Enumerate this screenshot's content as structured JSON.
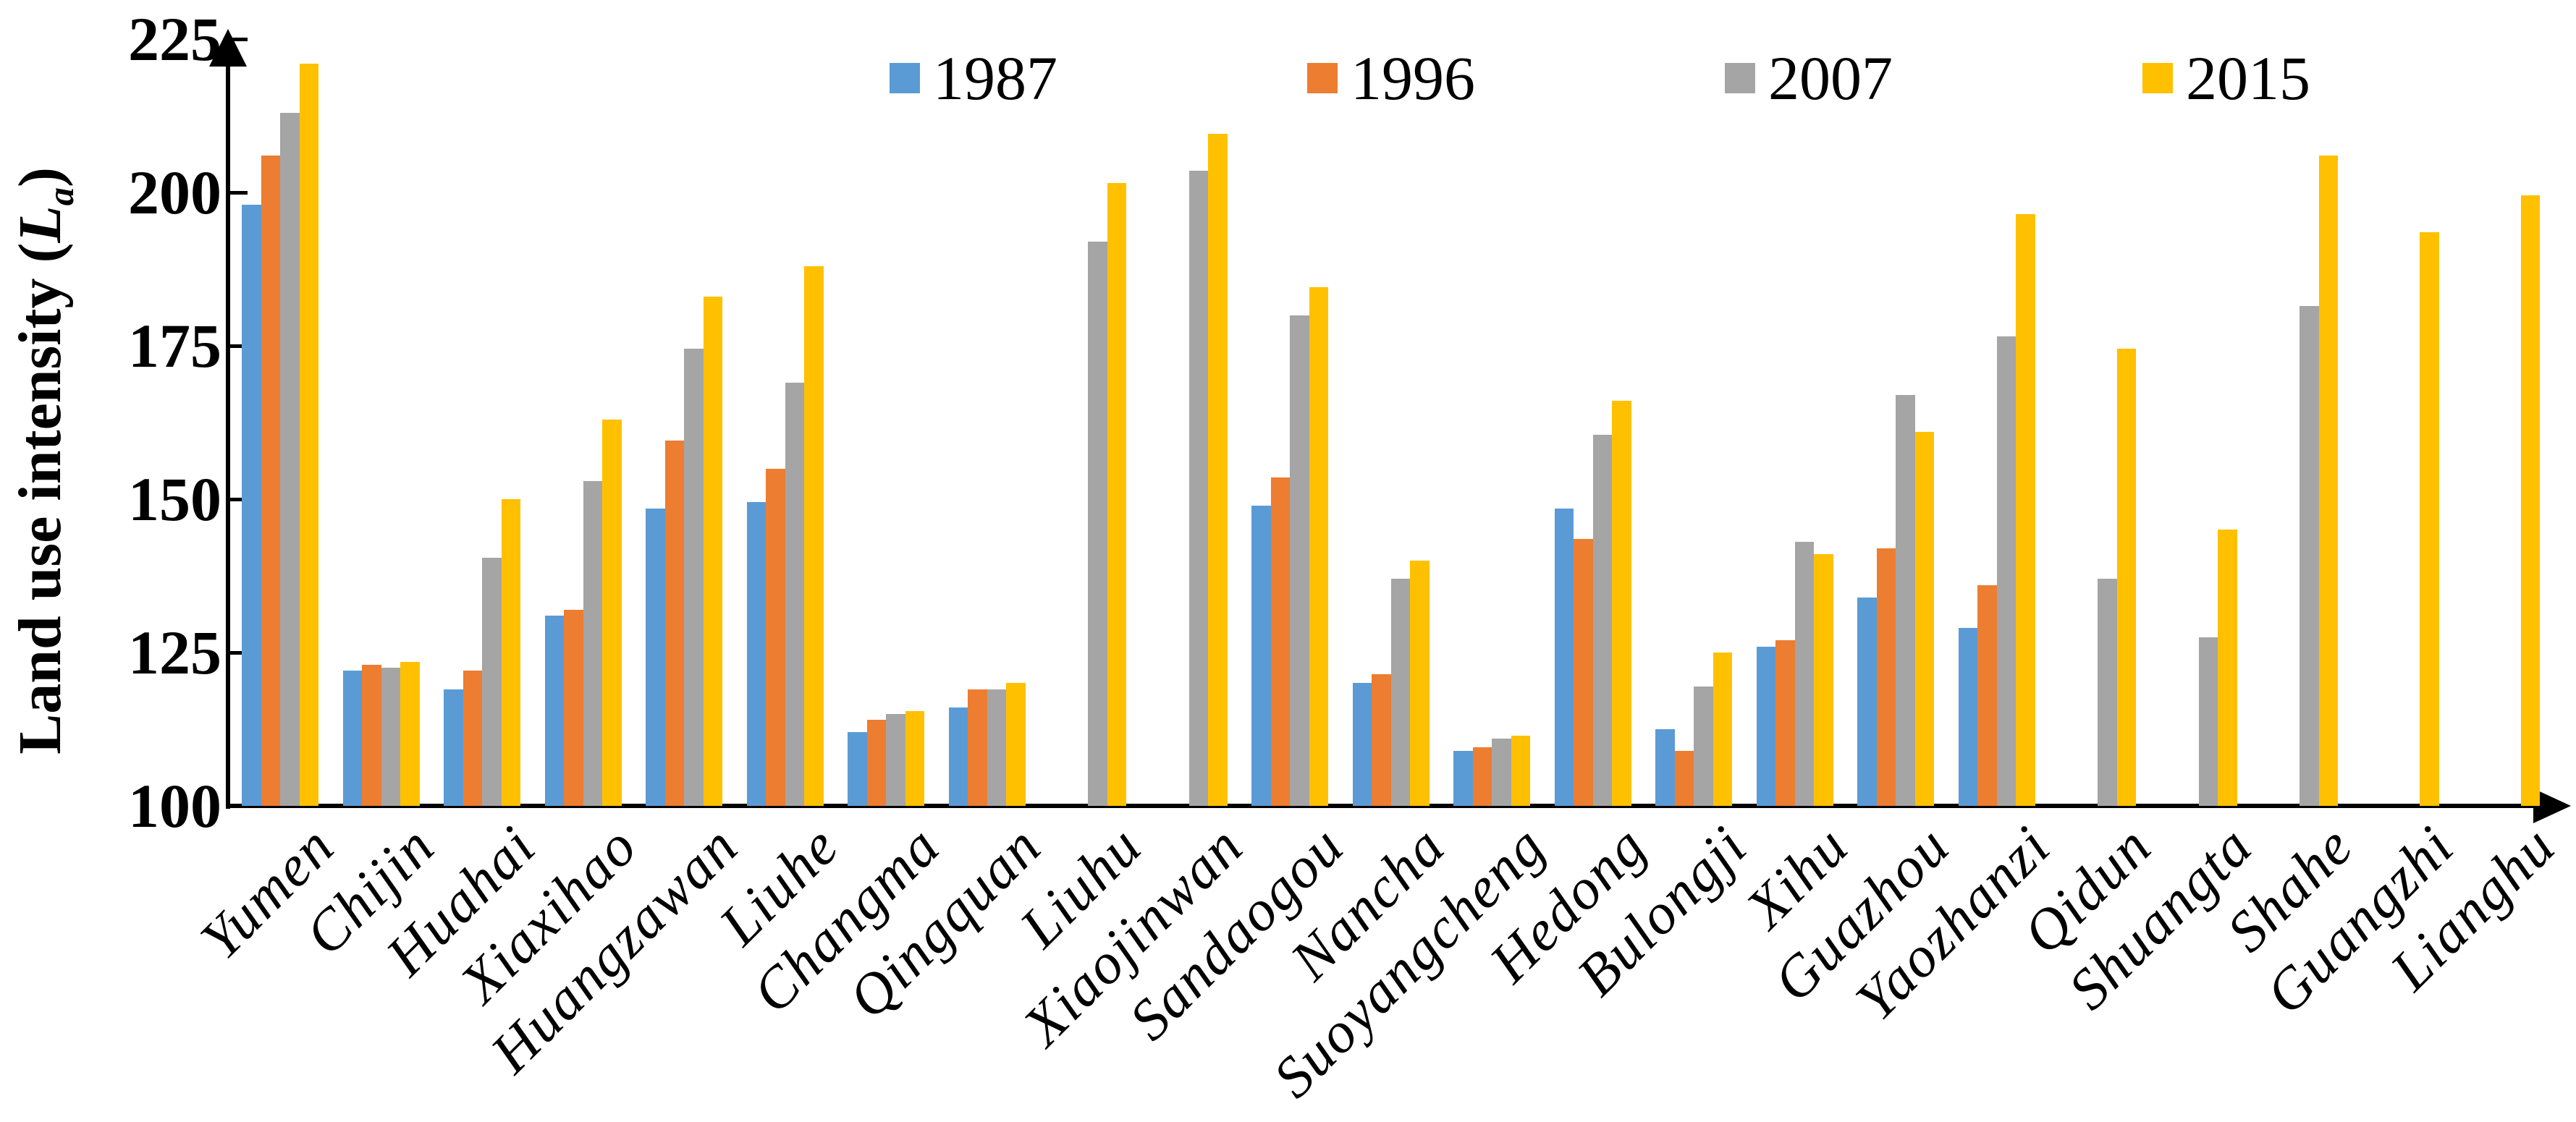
{
  "chart_data": {
    "type": "bar",
    "title": "",
    "ylabel_prefix": "Land use intensity (",
    "ylabel_symbol": "L",
    "ylabel_symbol_sub": "a",
    "ylabel_suffix": ")",
    "xlabel": "",
    "ylim": [
      100,
      225
    ],
    "yticks": [
      100,
      125,
      150,
      175,
      200,
      225
    ],
    "grid": false,
    "legend_position": "top",
    "categories": [
      "Yumen",
      "Chijin",
      "Huahai",
      "Xiaxihao",
      "Huangzawan",
      "Liuhe",
      "Changma",
      "Qingquan",
      "Liuhu",
      "Xiaojinwan",
      "Sandaogou",
      "Nancha",
      "Suoyangcheng",
      "Hedong",
      "Bulongji",
      "Xihu",
      "Guazhou",
      "Yaozhanzi",
      "Qidun",
      "Shuangta",
      "Shahe",
      "Guangzhi",
      "Lianghu"
    ],
    "series": [
      {
        "name": "1987",
        "color": "#5B9BD5",
        "values": [
          198,
          122,
          119,
          131,
          148.5,
          149.5,
          112,
          116,
          null,
          null,
          149,
          120,
          109,
          148.5,
          112.5,
          126,
          134,
          129,
          null,
          null,
          null,
          null,
          null
        ]
      },
      {
        "name": "1996",
        "color": "#ED7D31",
        "values": [
          206,
          123,
          122,
          132,
          159.5,
          155,
          114,
          119,
          null,
          null,
          153.5,
          121.5,
          109.5,
          143.5,
          109,
          127,
          142,
          136,
          null,
          null,
          null,
          null,
          null
        ]
      },
      {
        "name": "2007",
        "color": "#A5A5A5",
        "values": [
          213,
          122.5,
          140.5,
          153,
          174.5,
          169,
          115,
          119,
          192,
          203.5,
          180,
          137,
          111,
          160.5,
          119.5,
          143,
          167,
          176.5,
          137,
          127.5,
          181.5,
          null,
          null
        ]
      },
      {
        "name": "2015",
        "color": "#FFC000",
        "values": [
          221,
          123.5,
          150,
          163,
          183,
          188,
          115.5,
          120,
          201.5,
          209.5,
          184.5,
          140,
          111.5,
          166,
          125,
          141,
          161,
          196.5,
          174.5,
          145,
          206,
          193.5,
          199.5
        ]
      }
    ],
    "axis_color": "#000000",
    "background_color": "#FFFFFF"
  }
}
